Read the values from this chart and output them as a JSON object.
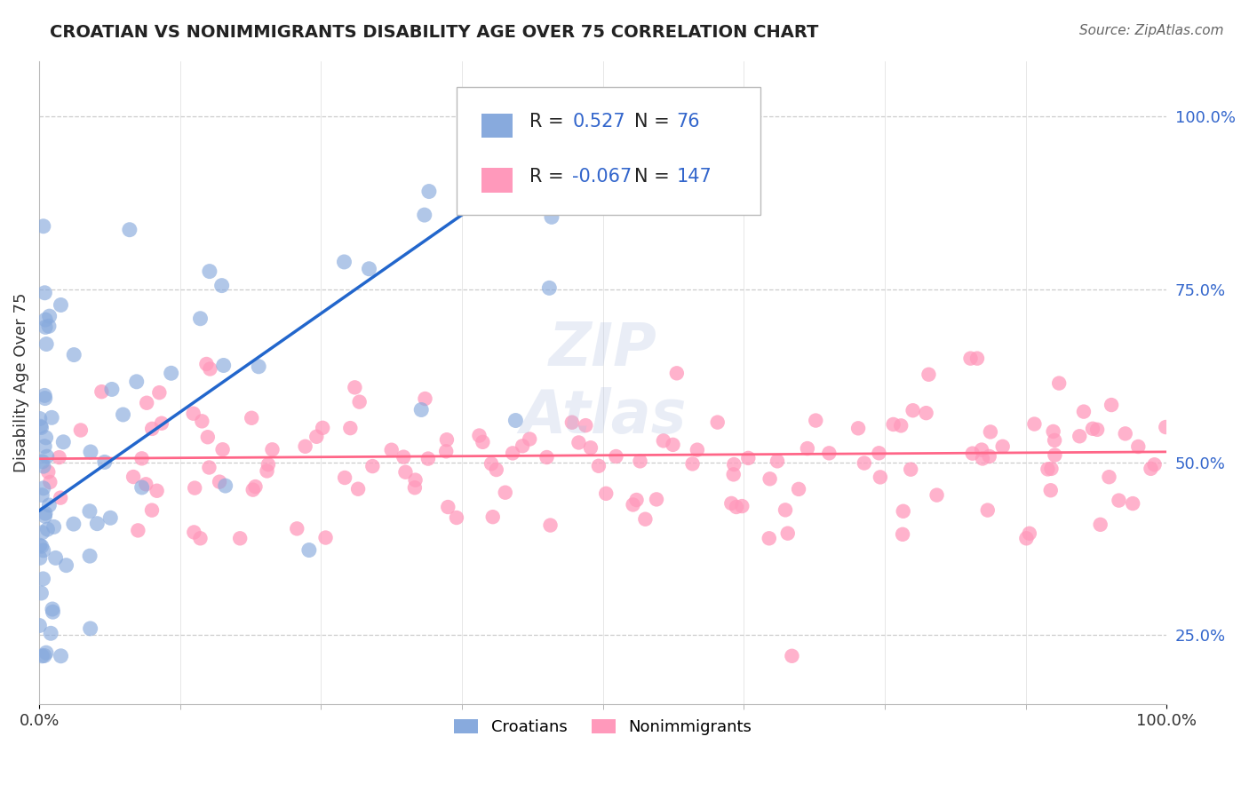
{
  "title": "CROATIAN VS NONIMMIGRANTS DISABILITY AGE OVER 75 CORRELATION CHART",
  "source": "Source: ZipAtlas.com",
  "ylabel": "Disability Age Over 75",
  "xlim": [
    0,
    100
  ],
  "ylim": [
    15,
    108
  ],
  "yticks": [
    25,
    50,
    75,
    100
  ],
  "ytick_labels": [
    "25.0%",
    "50.0%",
    "75.0%",
    "100.0%"
  ],
  "xticks": [
    0,
    100
  ],
  "xtick_labels": [
    "0.0%",
    "100.0%"
  ],
  "blue_color": "#88AADD",
  "pink_color": "#FF99BB",
  "blue_line_color": "#2266CC",
  "pink_line_color": "#FF6688",
  "r_blue": 0.527,
  "n_blue": 76,
  "r_pink": -0.067,
  "n_pink": 147,
  "legend_label_blue": "Croatians",
  "legend_label_pink": "Nonimmigrants",
  "grid_color": "#CCCCCC",
  "background_color": "#FFFFFF",
  "accent_blue": "#3366CC",
  "blue_trendline_x0": 0,
  "blue_trendline_y0": 43,
  "blue_trendline_x1": 50,
  "blue_trendline_y1": 100,
  "pink_trendline_x0": 0,
  "pink_trendline_y0": 50.5,
  "pink_trendline_x1": 100,
  "pink_trendline_y1": 51.5
}
